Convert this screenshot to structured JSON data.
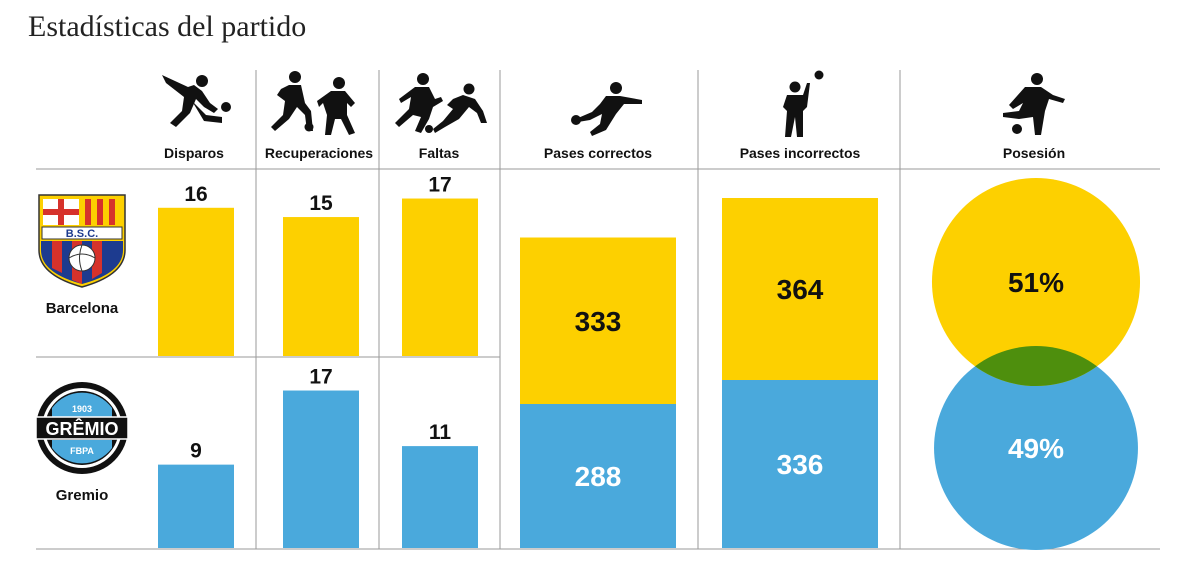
{
  "title": "Estadísticas del partido",
  "colors": {
    "barcelona": "#fdd000",
    "gremio": "#4aa9dc",
    "overlap": "#4e8f0d"
  },
  "teams": [
    {
      "name": "Barcelona",
      "badge_text": "B.S.C."
    },
    {
      "name": "Gremio",
      "badge_text": "GRÊMIO",
      "badge_year": "1903",
      "badge_sub": "FBPA"
    }
  ],
  "chart_data": [
    {
      "type": "bar",
      "category": "Disparos",
      "icon": "shooting-player-icon",
      "series": [
        {
          "name": "Barcelona",
          "value": 16
        },
        {
          "name": "Gremio",
          "value": 9
        }
      ]
    },
    {
      "type": "bar",
      "category": "Recuperaciones",
      "icon": "tackling-players-icon",
      "series": [
        {
          "name": "Barcelona",
          "value": 15
        },
        {
          "name": "Gremio",
          "value": 17
        }
      ]
    },
    {
      "type": "bar",
      "category": "Faltas",
      "icon": "foul-players-icon",
      "series": [
        {
          "name": "Barcelona",
          "value": 17
        },
        {
          "name": "Gremio",
          "value": 11
        }
      ]
    },
    {
      "type": "bar",
      "category": "Pases correctos",
      "icon": "passing-player-icon",
      "stacked": true,
      "series": [
        {
          "name": "Barcelona",
          "value": 333
        },
        {
          "name": "Gremio",
          "value": 288
        }
      ]
    },
    {
      "type": "bar",
      "category": "Pases incorrectos",
      "icon": "heading-player-icon",
      "stacked": true,
      "series": [
        {
          "name": "Barcelona",
          "value": 364
        },
        {
          "name": "Gremio",
          "value": 336
        }
      ]
    },
    {
      "type": "pie",
      "category": "Posesión",
      "icon": "dribbling-player-icon",
      "series": [
        {
          "name": "Barcelona",
          "value": 51,
          "label": "51%"
        },
        {
          "name": "Gremio",
          "value": 49,
          "label": "49%"
        }
      ]
    }
  ]
}
